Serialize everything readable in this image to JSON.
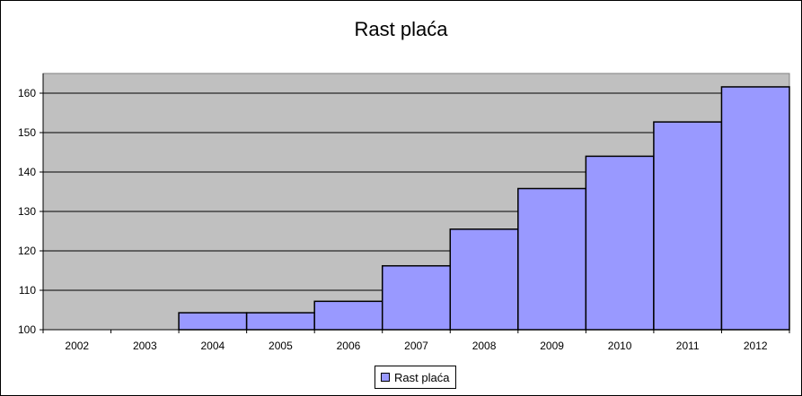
{
  "chart_data": {
    "type": "bar",
    "title": "Rast plaća",
    "xlabel": "",
    "ylabel": "",
    "categories": [
      "2002",
      "2003",
      "2004",
      "2005",
      "2006",
      "2007",
      "2008",
      "2009",
      "2010",
      "2011",
      "2012"
    ],
    "series": [
      {
        "name": "Rast plaća",
        "values": [
          100,
          100,
          104.3,
          104.3,
          107.2,
          116.2,
          125.5,
          135.8,
          144.0,
          152.7,
          161.6
        ]
      }
    ],
    "ylim": [
      100,
      165
    ],
    "yticks": [
      100,
      110,
      120,
      130,
      140,
      150,
      160
    ],
    "grid": true,
    "legend_position": "bottom",
    "colors": {
      "bar_fill": "#9999ff",
      "plot_background": "#c0c0c0",
      "gridline": "#000000"
    }
  }
}
